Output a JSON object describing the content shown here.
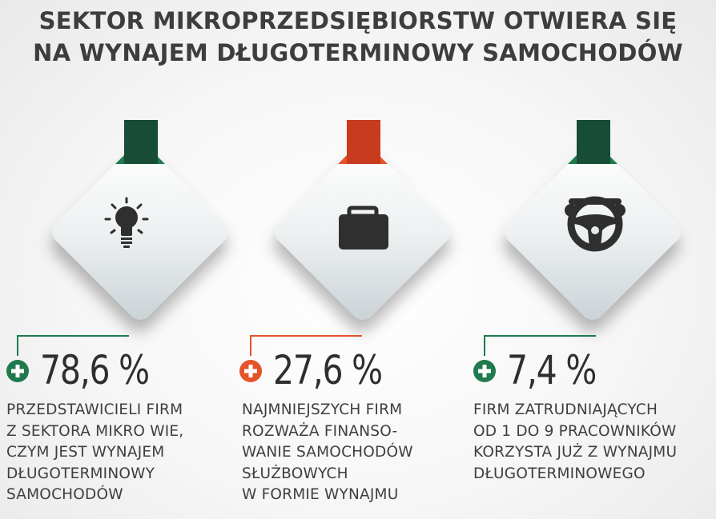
{
  "title": {
    "line1": "SEKTOR MIKROPRZEDSIĘBIORSTW OTWIERA SIĘ",
    "line2": "NA WYNAJEM DŁUGOTERMINOWY SAMOCHODÓW"
  },
  "colors": {
    "green": "#1f7a4d",
    "dark_green": "#174d36",
    "orange": "#e3542a",
    "red": "#c93b1e",
    "icon": "#2f2f2f"
  },
  "stats": [
    {
      "icon": "lightbulb-icon",
      "value": "78,6 %",
      "accent": "green",
      "description": "PRZEDSTAWICIELI FIRM\nZ SEKTORA MIKRO WIE,\nCZYM JEST WYNAJEM\nDŁUGOTERMINOWY\nSAMOCHODÓW"
    },
    {
      "icon": "briefcase-icon",
      "value": "27,6 %",
      "accent": "orange",
      "description": "NAJMNIEJSZYCH FIRM\nROZWAŻA FINANSO-\nWANIE SAMOCHODÓW\nSŁUŻBOWYCH\nW FORMIE WYNAJMU"
    },
    {
      "icon": "steering-wheel-icon",
      "value": "7,4 %",
      "accent": "green",
      "description": "FIRM ZATRUDNIAJĄCYCH\nOD 1 DO 9 PRACOWNIKÓW\nKORZYSTA JUŻ Z WYNAJMU\nDŁUGOTERMINOWEGO"
    }
  ]
}
